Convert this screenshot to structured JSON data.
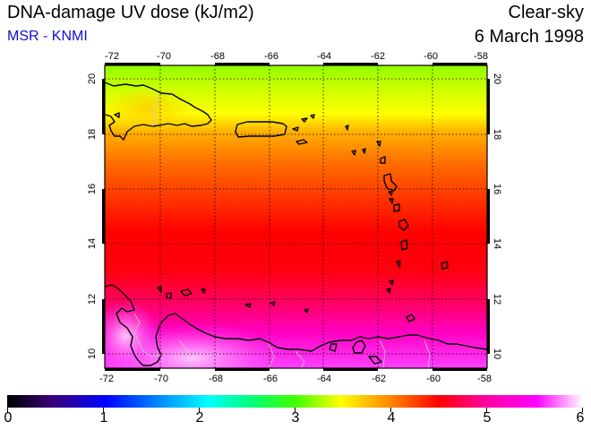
{
  "header": {
    "title": "DNA-damage UV dose (kJ/m2)",
    "subtitle": "MSR - KNMI",
    "condition": "Clear-sky",
    "date": "6 March 1998"
  },
  "map": {
    "lon_ticks": [
      "-72",
      "-70",
      "-68",
      "-66",
      "-64",
      "-62",
      "-60",
      "-58"
    ],
    "lat_ticks": [
      "10",
      "12",
      "14",
      "16",
      "18",
      "20"
    ],
    "lon_range": [
      -72,
      -58
    ],
    "lat_range": [
      9.5,
      20.5
    ],
    "gridlines": "dotted",
    "coastline_color": "#000000",
    "border_color": "#c8c8c8"
  },
  "colorbar": {
    "ticks": [
      "0",
      "1",
      "2",
      "3",
      "4",
      "5",
      "6"
    ],
    "range": [
      0,
      6
    ],
    "colors": [
      "#000000",
      "#3a007a",
      "#0000ff",
      "#00a0ff",
      "#00ffff",
      "#00ff80",
      "#40ff00",
      "#ffff00",
      "#ff8000",
      "#ff0000",
      "#ff00a0",
      "#ff00ff",
      "#ffffff"
    ]
  }
}
